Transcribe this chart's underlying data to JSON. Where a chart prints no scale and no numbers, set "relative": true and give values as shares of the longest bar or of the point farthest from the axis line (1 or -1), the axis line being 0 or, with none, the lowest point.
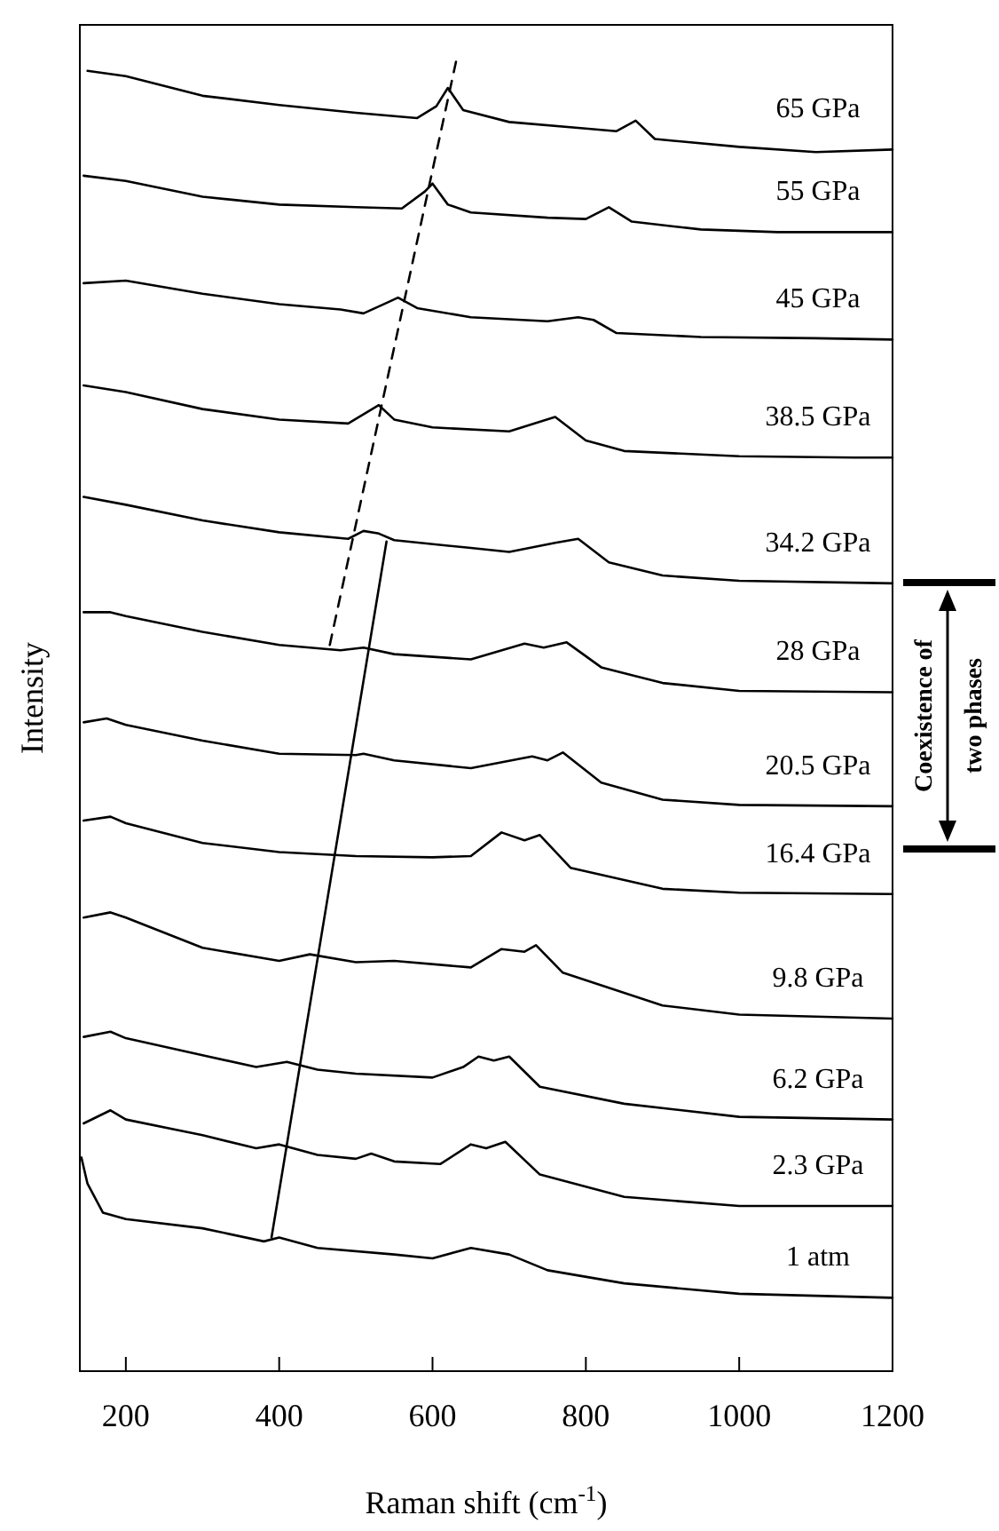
{
  "chart_data": {
    "type": "line",
    "xlabel": "Raman shift (cm$^{-1}$)",
    "ylabel": "Intensity",
    "xlim": [
      140,
      1200
    ],
    "xticks": [
      200,
      400,
      600,
      800,
      1000,
      1200
    ],
    "relative": true,
    "line_style": "solid",
    "series": [
      {
        "name": "65 GPa",
        "color": "#000000",
        "x": [
          150,
          200,
          300,
          400,
          500,
          580,
          605,
          620,
          640,
          700,
          800,
          840,
          865,
          890,
          1000,
          1100,
          1200
        ],
        "values": [
          0.992,
          0.988,
          0.973,
          0.966,
          0.96,
          0.956,
          0.965,
          0.979,
          0.962,
          0.953,
          0.948,
          0.946,
          0.954,
          0.94,
          0.934,
          0.93,
          0.932
        ]
      },
      {
        "name": "55 GPa",
        "color": "#000000",
        "x": [
          145,
          200,
          300,
          400,
          500,
          560,
          590,
          600,
          620,
          650,
          750,
          800,
          830,
          860,
          950,
          1050,
          1200
        ],
        "values": [
          0.912,
          0.908,
          0.896,
          0.89,
          0.888,
          0.887,
          0.9,
          0.906,
          0.89,
          0.884,
          0.88,
          0.879,
          0.888,
          0.877,
          0.871,
          0.869,
          0.869
        ]
      },
      {
        "name": "45 GPa",
        "color": "#000000",
        "x": [
          145,
          200,
          300,
          400,
          480,
          510,
          540,
          555,
          580,
          650,
          750,
          790,
          810,
          840,
          950,
          1100,
          1200
        ],
        "values": [
          0.83,
          0.832,
          0.822,
          0.814,
          0.81,
          0.807,
          0.815,
          0.819,
          0.811,
          0.804,
          0.801,
          0.804,
          0.802,
          0.792,
          0.789,
          0.788,
          0.787
        ]
      },
      {
        "name": "38.5 GPa",
        "color": "#000000",
        "x": [
          145,
          200,
          300,
          400,
          490,
          530,
          550,
          600,
          700,
          760,
          800,
          850,
          1000,
          1150,
          1200
        ],
        "values": [
          0.752,
          0.747,
          0.734,
          0.726,
          0.723,
          0.737,
          0.726,
          0.72,
          0.717,
          0.728,
          0.71,
          0.702,
          0.698,
          0.697,
          0.697
        ]
      },
      {
        "name": "34.2 GPa",
        "color": "#000000",
        "x": [
          145,
          200,
          300,
          400,
          490,
          510,
          530,
          550,
          650,
          700,
          760,
          790,
          830,
          900,
          1000,
          1200
        ],
        "values": [
          0.667,
          0.661,
          0.649,
          0.64,
          0.635,
          0.641,
          0.639,
          0.634,
          0.628,
          0.625,
          0.632,
          0.635,
          0.617,
          0.607,
          0.603,
          0.601
        ]
      },
      {
        "name": "28 GPa",
        "color": "#000000",
        "x": [
          145,
          180,
          200,
          300,
          400,
          480,
          510,
          550,
          650,
          720,
          745,
          775,
          820,
          900,
          1000,
          1200
        ],
        "values": [
          0.579,
          0.579,
          0.576,
          0.564,
          0.554,
          0.55,
          0.552,
          0.547,
          0.543,
          0.555,
          0.552,
          0.556,
          0.537,
          0.525,
          0.519,
          0.518
        ]
      },
      {
        "name": "20.5 GPa",
        "color": "#000000",
        "x": [
          145,
          175,
          200,
          300,
          400,
          500,
          510,
          550,
          650,
          730,
          750,
          770,
          820,
          900,
          1000,
          1200
        ],
        "values": [
          0.495,
          0.498,
          0.493,
          0.481,
          0.471,
          0.47,
          0.471,
          0.466,
          0.46,
          0.469,
          0.466,
          0.472,
          0.449,
          0.436,
          0.432,
          0.431
        ]
      },
      {
        "name": "16.4 GPa",
        "color": "#000000",
        "x": [
          145,
          180,
          200,
          300,
          400,
          500,
          600,
          650,
          690,
          720,
          740,
          780,
          900,
          1000,
          1200
        ],
        "values": [
          0.42,
          0.423,
          0.418,
          0.403,
          0.396,
          0.393,
          0.392,
          0.393,
          0.411,
          0.405,
          0.409,
          0.384,
          0.368,
          0.365,
          0.364
        ]
      },
      {
        "name": "9.8 GPa",
        "color": "#000000",
        "x": [
          145,
          180,
          200,
          300,
          400,
          440,
          500,
          550,
          650,
          690,
          720,
          735,
          770,
          900,
          1000,
          1200
        ],
        "values": [
          0.346,
          0.35,
          0.346,
          0.323,
          0.313,
          0.318,
          0.312,
          0.313,
          0.308,
          0.322,
          0.32,
          0.325,
          0.304,
          0.279,
          0.272,
          0.269
        ]
      },
      {
        "name": "6.2 GPa",
        "color": "#000000",
        "x": [
          145,
          180,
          200,
          300,
          370,
          410,
          450,
          500,
          600,
          640,
          660,
          680,
          700,
          740,
          850,
          1000,
          1200
        ],
        "values": [
          0.255,
          0.259,
          0.254,
          0.241,
          0.232,
          0.236,
          0.23,
          0.227,
          0.224,
          0.232,
          0.24,
          0.237,
          0.24,
          0.217,
          0.204,
          0.194,
          0.192
        ]
      },
      {
        "name": "2.3 GPa",
        "color": "#000000",
        "x": [
          145,
          180,
          200,
          300,
          370,
          400,
          450,
          500,
          520,
          550,
          610,
          650,
          670,
          695,
          740,
          850,
          1000,
          1200
        ],
        "values": [
          0.189,
          0.199,
          0.192,
          0.18,
          0.17,
          0.173,
          0.165,
          0.162,
          0.166,
          0.16,
          0.158,
          0.173,
          0.17,
          0.175,
          0.15,
          0.133,
          0.126,
          0.126
        ]
      },
      {
        "name": "1 atm",
        "color": "#000000",
        "x": [
          142,
          150,
          170,
          200,
          300,
          380,
          400,
          450,
          550,
          600,
          650,
          700,
          750,
          850,
          1000,
          1200
        ],
        "values": [
          0.163,
          0.143,
          0.121,
          0.116,
          0.109,
          0.099,
          0.102,
          0.094,
          0.089,
          0.086,
          0.094,
          0.089,
          0.077,
          0.067,
          0.059,
          0.056
        ]
      },
      {
        "type": "line",
        "color": "#000000",
        "line_style": "dashed",
        "x": [
          466,
          631
        ],
        "values": [
          0.554,
          1.0
        ]
      },
      {
        "type": "line",
        "color": "#000000",
        "line_style": "solid",
        "x": [
          390,
          540
        ],
        "values": [
          0.102,
          0.633
        ]
      }
    ],
    "annotations": [
      "Coexistence of two phases"
    ]
  }
}
